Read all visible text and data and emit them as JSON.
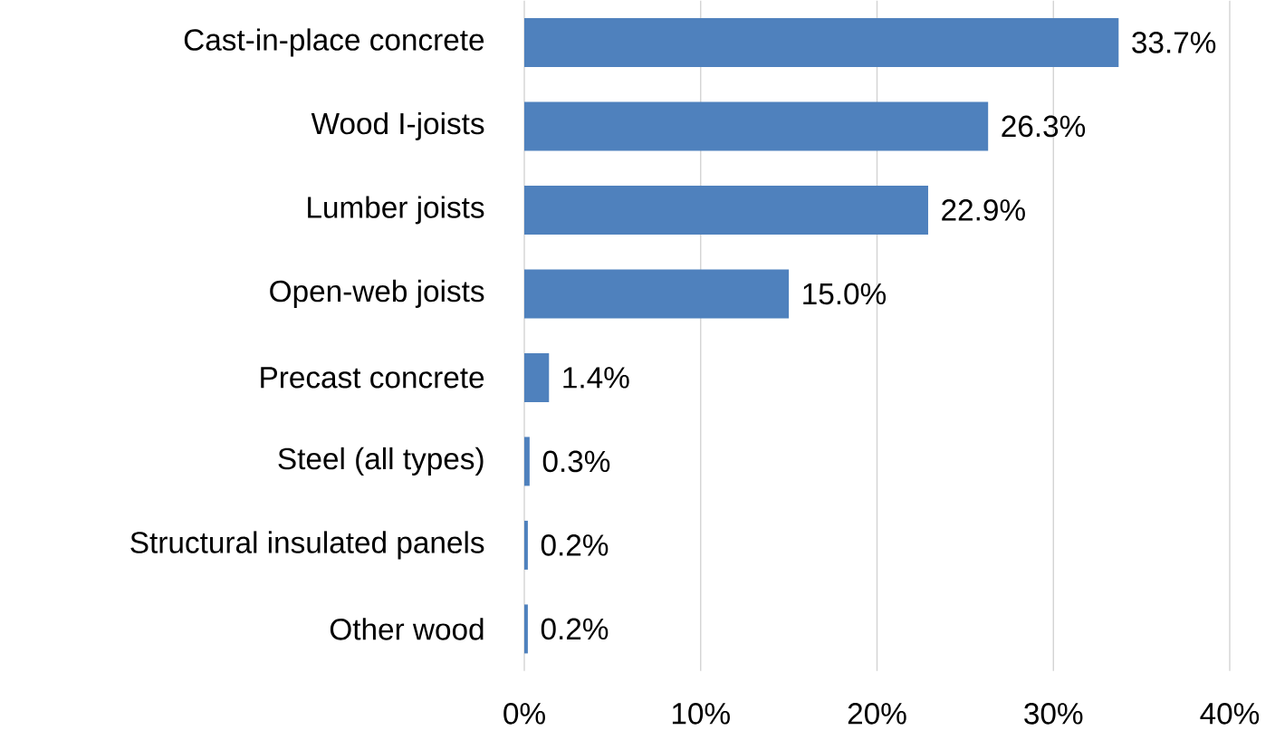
{
  "chart_data": {
    "type": "bar",
    "orientation": "horizontal",
    "categories": [
      "Cast-in-place concrete",
      "Wood I-joists",
      "Lumber joists",
      "Open-web joists",
      "Precast concrete",
      "Steel (all types)",
      "Structural insulated panels",
      "Other wood"
    ],
    "values": [
      33.7,
      26.3,
      22.9,
      15.0,
      1.4,
      0.3,
      0.2,
      0.2
    ],
    "value_labels": [
      "33.7%",
      "26.3%",
      "22.9%",
      "15.0%",
      "1.4%",
      "0.3%",
      "0.2%",
      "0.2%"
    ],
    "color": "#4f81bd",
    "xlim": [
      0,
      40
    ],
    "xticks": [
      {
        "value": 0,
        "label": "0%"
      },
      {
        "value": 10,
        "label": "10%"
      },
      {
        "value": 20,
        "label": "20%"
      },
      {
        "value": 30,
        "label": "30%"
      },
      {
        "value": 40,
        "label": "40%"
      }
    ],
    "grid": "x"
  }
}
